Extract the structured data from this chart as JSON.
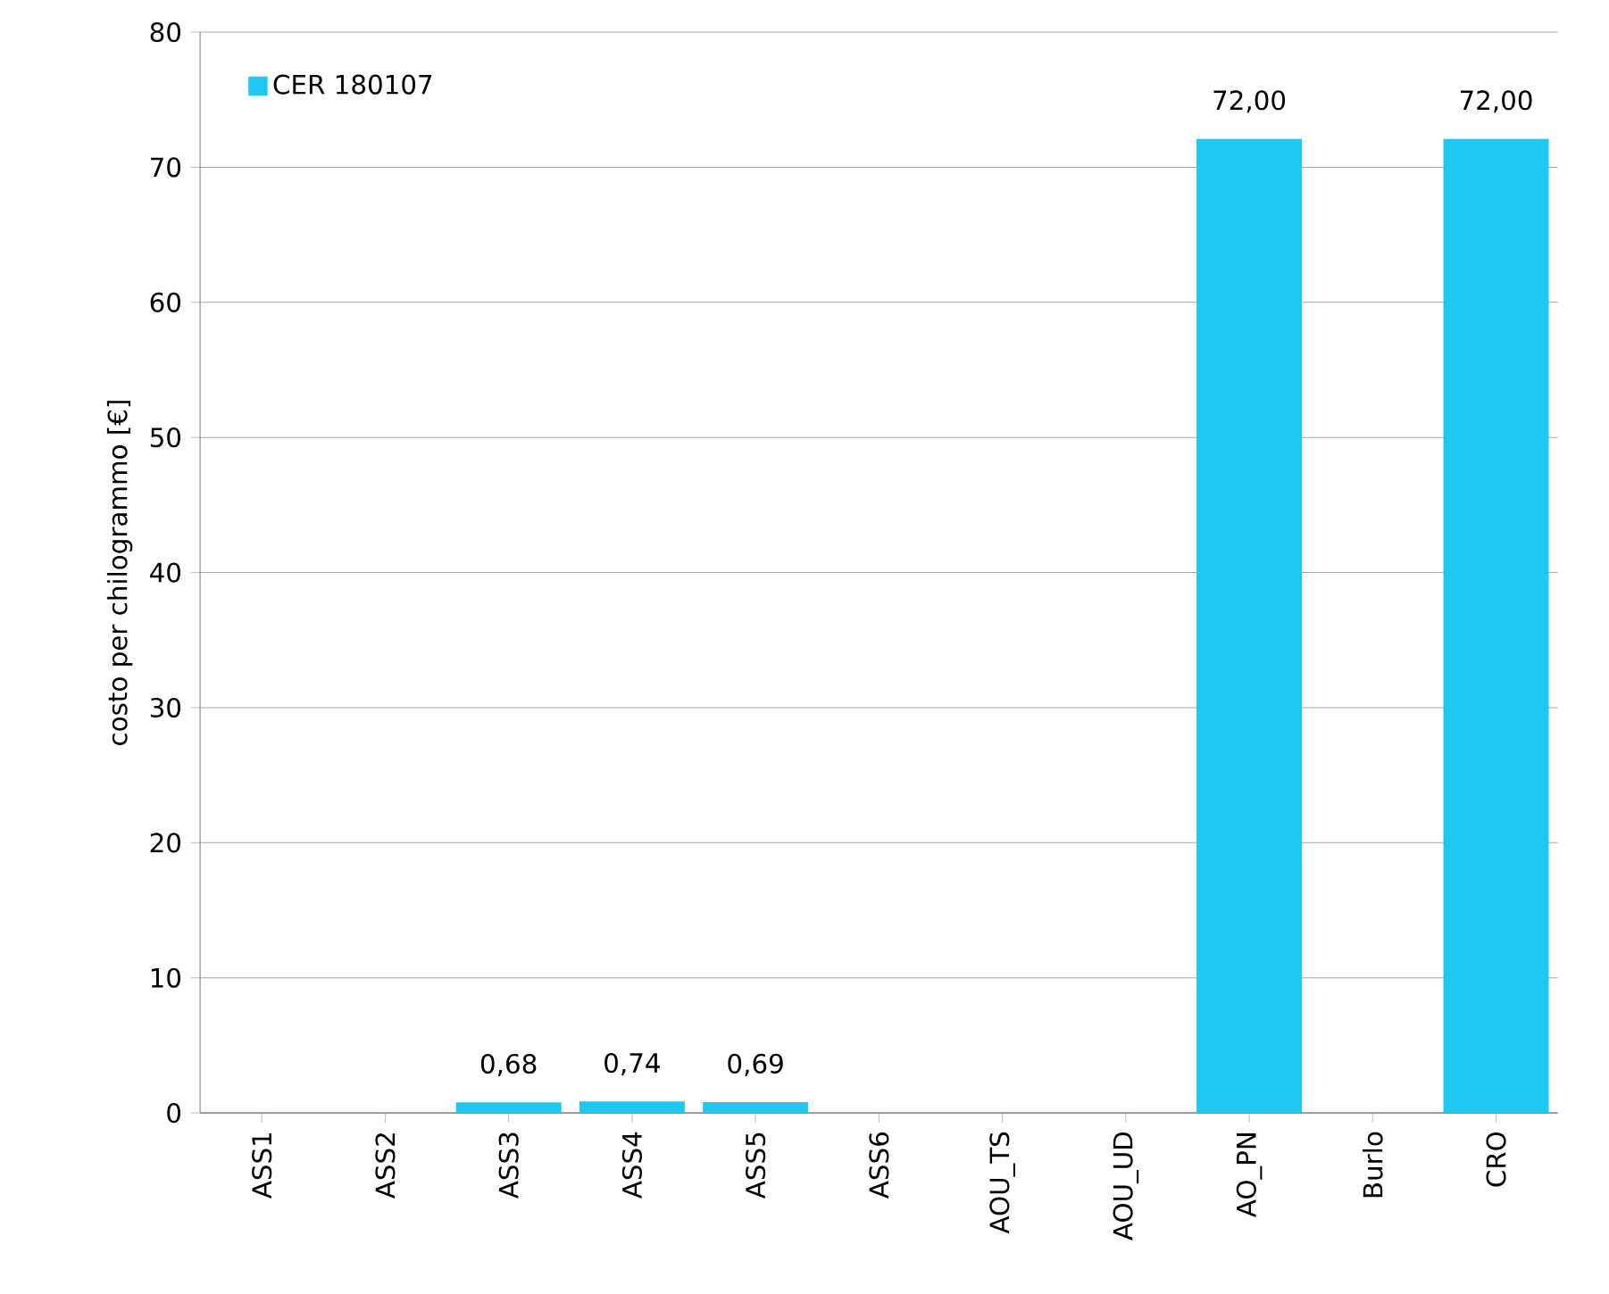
{
  "chart_data": {
    "type": "bar",
    "ylabel": "costo per chilogrammo [€]",
    "categories": [
      "ASS1",
      "ASS2",
      "ASS3",
      "ASS4",
      "ASS5",
      "ASS6",
      "AOU_TS",
      "AOU_UD",
      "AO_PN",
      "Burlo",
      "CRO"
    ],
    "series": [
      {
        "name": "CER 180107",
        "color": "#1ec8f0",
        "values": [
          null,
          null,
          0.68,
          0.74,
          0.69,
          null,
          null,
          null,
          72,
          null,
          72
        ],
        "value_labels": [
          null,
          null,
          "0,68",
          "0,74",
          "0,69",
          null,
          null,
          null,
          "72,00",
          null,
          "72,00"
        ]
      }
    ],
    "ylim": [
      0,
      80
    ],
    "yticks": [
      0,
      10,
      20,
      30,
      40,
      50,
      60,
      70,
      80
    ],
    "grid": "y",
    "legend": "top left"
  }
}
